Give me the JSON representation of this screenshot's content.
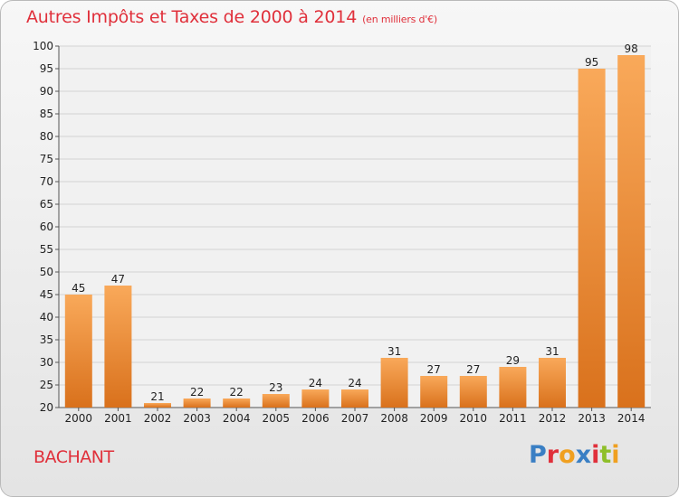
{
  "title": "Autres Impôts et Taxes de 2000 à 2014",
  "title_unit": "(en milliers d'€)",
  "commune": "BACHANT",
  "logo": {
    "text": "Proxiti",
    "colors": [
      "#3a7fc4",
      "#e0303b",
      "#f0a020",
      "#3a7fc4",
      "#e0303b",
      "#8fbf2a",
      "#f0a020"
    ]
  },
  "colors": {
    "title": "#e0303b",
    "bar_light": "#f9a95a",
    "bar_dark": "#d9711c"
  },
  "chart_data": {
    "type": "bar",
    "categories": [
      "2000",
      "2001",
      "2002",
      "2003",
      "2004",
      "2005",
      "2006",
      "2007",
      "2008",
      "2009",
      "2010",
      "2011",
      "2012",
      "2013",
      "2014"
    ],
    "values": [
      45,
      47,
      21,
      22,
      22,
      23,
      24,
      24,
      31,
      27,
      27,
      29,
      31,
      95,
      98
    ],
    "ylim": [
      20,
      100
    ],
    "yticks": [
      20,
      25,
      30,
      35,
      40,
      45,
      50,
      55,
      60,
      65,
      70,
      75,
      80,
      85,
      90,
      95,
      100
    ],
    "grid": true
  }
}
